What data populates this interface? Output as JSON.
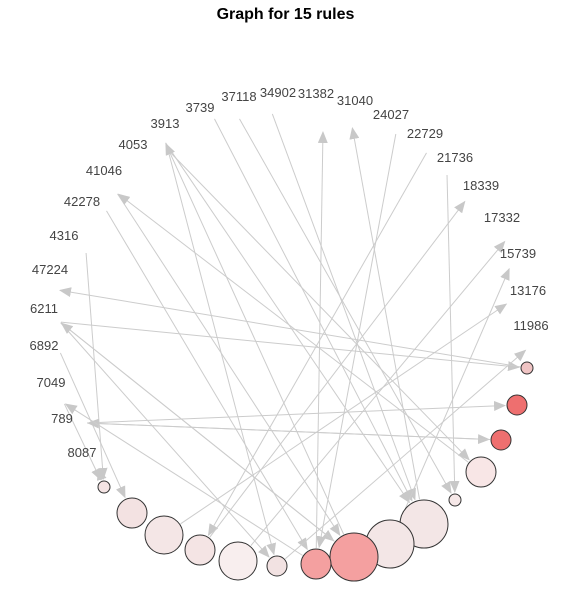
{
  "title": "Graph for 15 rules",
  "colors": {
    "edge": "#cccccc",
    "arrow": "#c8c8c8",
    "node_stroke": "#333333",
    "label": "#444444",
    "low_lift": "#f4e6e6",
    "mid_lift": "#f3b8b8",
    "high_lift": "#ee7777"
  },
  "items": [
    "34902",
    "31382",
    "31040",
    "24027",
    "22729",
    "21736",
    "18339",
    "17332",
    "15739",
    "13176",
    "11986",
    "37118",
    "3739",
    "3913",
    "4053",
    "41046",
    "42278",
    "4316",
    "47224",
    "6211",
    "6892",
    "7049",
    "789",
    "8087"
  ],
  "rules": [
    {
      "id": "r1",
      "fill": "#f8e6e6"
    },
    {
      "id": "r2",
      "fill": "#ee6f6f"
    },
    {
      "id": "r3",
      "fill": "#ee6f6f"
    },
    {
      "id": "r4",
      "fill": "#f6e8e8"
    },
    {
      "id": "r5",
      "fill": "#f3e6e6"
    },
    {
      "id": "r6",
      "fill": "#f3e6e6"
    },
    {
      "id": "r7",
      "fill": "#f4a0a0"
    },
    {
      "id": "r8",
      "fill": "#f4a0a0"
    },
    {
      "id": "r9",
      "fill": "#f2e2e2"
    },
    {
      "id": "r10",
      "fill": "#f8eeee"
    },
    {
      "id": "r11",
      "fill": "#f4e4e4"
    },
    {
      "id": "r12",
      "fill": "#f4e6e6"
    },
    {
      "id": "r13",
      "fill": "#f3e2e2"
    },
    {
      "id": "r14",
      "fill": "#f4e4e4"
    },
    {
      "id": "r15",
      "fill": "#f0c4c4"
    }
  ],
  "edges": [
    [
      "item:4053",
      "rule:r1"
    ],
    [
      "item:41046",
      "rule:r7"
    ],
    [
      "item:42278",
      "rule:r8"
    ],
    [
      "item:4316",
      "rule:r14"
    ],
    [
      "item:6211",
      "rule:r7"
    ],
    [
      "item:6892",
      "rule:r13"
    ],
    [
      "item:789",
      "rule:r3"
    ],
    [
      "item:789",
      "rule:r2"
    ],
    [
      "item:7049",
      "rule:r14"
    ],
    [
      "item:3739",
      "rule:r5"
    ],
    [
      "item:3913",
      "rule:r5"
    ],
    [
      "item:37118",
      "rule:r4"
    ],
    [
      "item:34902",
      "rule:r5"
    ],
    [
      "item:24027",
      "rule:r8"
    ],
    [
      "item:21736",
      "rule:r4"
    ],
    [
      "item:22729",
      "rule:r11"
    ],
    [
      "item:6211",
      "rule:r15"
    ],
    [
      "item:4053",
      "rule:r9"
    ],
    [
      "item:6211",
      "rule:r9"
    ],
    [
      "rule:r15",
      "item:47224"
    ],
    [
      "rule:r14",
      "item:8087"
    ],
    [
      "rule:r12",
      "item:13176"
    ],
    [
      "rule:r10",
      "item:17332"
    ],
    [
      "rule:r9",
      "item:11986"
    ],
    [
      "rule:r7",
      "item:3913"
    ],
    [
      "rule:r7",
      "item:6211"
    ],
    [
      "rule:r8",
      "item:31382"
    ],
    [
      "rule:r5",
      "item:31040"
    ],
    [
      "rule:r11",
      "item:18339"
    ],
    [
      "rule:r3",
      "item:789"
    ],
    [
      "rule:r8",
      "item:7049"
    ],
    [
      "rule:r6",
      "item:15739"
    ],
    [
      "rule:r1",
      "item:41046"
    ]
  ]
}
